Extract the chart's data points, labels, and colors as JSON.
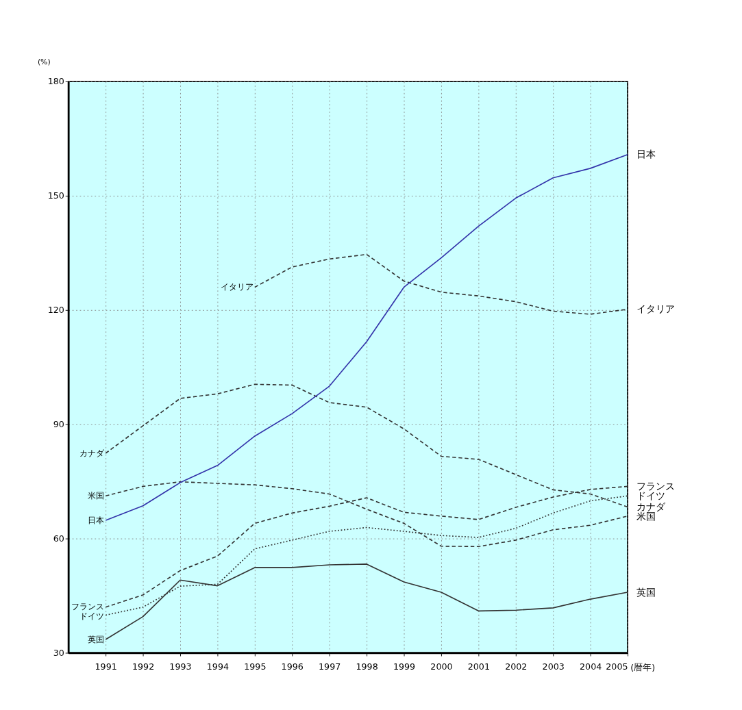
{
  "chart_data": {
    "type": "line",
    "ylabel": "(%)",
    "xlabel": "(暦年)",
    "x": [
      1991,
      1992,
      1993,
      1994,
      1995,
      1996,
      1997,
      1998,
      1999,
      2000,
      2001,
      2002,
      2003,
      2004,
      2005
    ],
    "xlim": [
      1990,
      2005
    ],
    "xticks": [
      1991,
      1992,
      1993,
      1994,
      1995,
      1996,
      1997,
      1998,
      1999,
      2000,
      2001,
      2002,
      2003,
      2004,
      2005
    ],
    "ylim": [
      30,
      180
    ],
    "yticks": [
      30,
      60,
      90,
      120,
      150,
      180
    ],
    "grid": true,
    "marker": "none",
    "series": [
      {
        "name": "日本",
        "color": "#3333aa",
        "line_style": "solid",
        "values": [
          64.8,
          68.6,
          74.7,
          79.2,
          86.9,
          92.8,
          100,
          111.7,
          126,
          133.7,
          142,
          149.4,
          154.7,
          157.2,
          160.8
        ]
      },
      {
        "name": "イタリア",
        "color": "#333333",
        "line_style": "dashed",
        "values": [
          null,
          null,
          null,
          null,
          126,
          131.3,
          133.4,
          134.6,
          127.6,
          124.7,
          123.7,
          122.2,
          119.7,
          118.9,
          120.2
        ]
      },
      {
        "name": "カナダ",
        "color": "#333333",
        "line_style": "dashed",
        "values": [
          82.4,
          89.6,
          96.8,
          98,
          100.5,
          100.3,
          95.7,
          94.5,
          88.8,
          81.6,
          80.8,
          76.8,
          72.8,
          71.7,
          68.3
        ]
      },
      {
        "name": "米国",
        "color": "#333333",
        "line_style": "dashed",
        "values": [
          71.2,
          73.7,
          74.9,
          74.5,
          74.1,
          73.1,
          71.7,
          67.7,
          64,
          58,
          57.9,
          59.6,
          62.3,
          63.5,
          65.9
        ]
      },
      {
        "name": "フランス",
        "color": "#333333",
        "line_style": "dashed",
        "values": [
          42,
          45.2,
          51.6,
          55.4,
          64,
          66.7,
          68.5,
          70.7,
          66.9,
          65.9,
          65,
          68.2,
          70.9,
          72.9,
          73.7
        ]
      },
      {
        "name": "ドイツ",
        "color": "#333333",
        "line_style": "dotted",
        "values": [
          39.9,
          42,
          47.5,
          48,
          57.3,
          59.6,
          61.9,
          62.9,
          61.9,
          60.8,
          60.3,
          62.7,
          66.7,
          69.9,
          71.2
        ]
      },
      {
        "name": "英国",
        "color": "#333333",
        "line_style": "solid",
        "values": [
          33.5,
          39.5,
          49.1,
          47.6,
          52.4,
          52.4,
          53.1,
          53.3,
          48.6,
          45.9,
          41,
          41.2,
          41.8,
          44.1,
          45.9
        ]
      }
    ]
  }
}
